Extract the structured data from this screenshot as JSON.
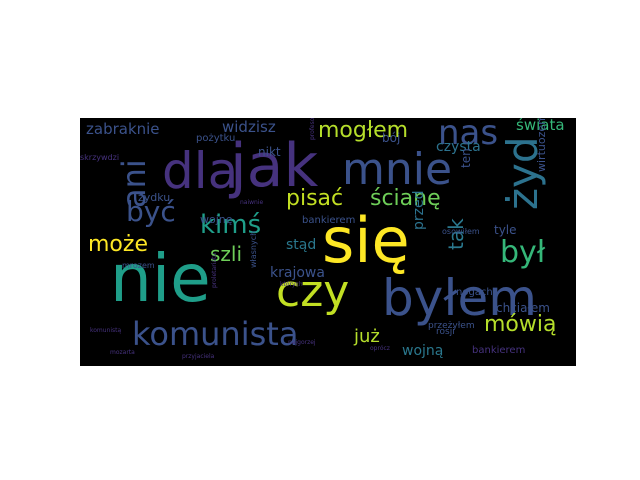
{
  "wordcloud": {
    "background": "#000000",
    "palette": {
      "purple": "#46327e",
      "indigo": "#3b528b",
      "blue": "#365c8d",
      "teal": "#1f9e89",
      "green": "#35b779",
      "lime": "#6ece58",
      "yellow": "#fde725"
    },
    "words": [
      {
        "text": "nie",
        "color": "#1f9e89",
        "weight": 1.0
      },
      {
        "text": "jak",
        "color": "#46327e",
        "weight": 0.92
      },
      {
        "text": "się",
        "color": "#fde725",
        "weight": 0.86
      },
      {
        "text": "byłem",
        "color": "#3b528b",
        "weight": 0.84
      },
      {
        "text": "dla",
        "color": "#46327e",
        "weight": 0.72
      },
      {
        "text": "czy",
        "color": "#c2df23",
        "weight": 0.62
      },
      {
        "text": "mnie",
        "color": "#3b528b",
        "weight": 0.6
      },
      {
        "text": "żyd",
        "color": "#2c728e",
        "weight": 0.58
      },
      {
        "text": "komunista",
        "color": "#3b528b",
        "weight": 0.46
      },
      {
        "text": "nas",
        "color": "#3b528b",
        "weight": 0.44
      },
      {
        "text": "był",
        "color": "#35b779",
        "weight": 0.44
      },
      {
        "text": "ani",
        "color": "#3b528b",
        "weight": 0.44
      },
      {
        "text": "być",
        "color": "#3b528b",
        "weight": 0.38
      },
      {
        "text": "kimś",
        "color": "#1f9e89",
        "weight": 0.36
      },
      {
        "text": "mogłem",
        "color": "#b5de2b",
        "weight": 0.3
      },
      {
        "text": "mówią",
        "color": "#b5de2b",
        "weight": 0.3
      },
      {
        "text": "pisać",
        "color": "#c2df23",
        "weight": 0.3
      },
      {
        "text": "ścianę",
        "color": "#6ece58",
        "weight": 0.3
      },
      {
        "text": "może",
        "color": "#fde725",
        "weight": 0.28
      },
      {
        "text": "szli",
        "color": "#6ece58",
        "weight": 0.26
      },
      {
        "text": "tak",
        "color": "#2a788e",
        "weight": 0.26
      },
      {
        "text": "już",
        "color": "#b5de2b",
        "weight": 0.22
      },
      {
        "text": "zabraknie",
        "color": "#3b528b",
        "weight": 0.2
      },
      {
        "text": "widzisz",
        "color": "#3b528b",
        "weight": 0.2
      },
      {
        "text": "świata",
        "color": "#35b779",
        "weight": 0.2
      },
      {
        "text": "czysta",
        "color": "#2c728e",
        "weight": 0.2
      },
      {
        "text": "przed",
        "color": "#2c728e",
        "weight": 0.2
      },
      {
        "text": "urzędu",
        "color": "#3b528b",
        "weight": 0.2
      },
      {
        "text": "krajowa",
        "color": "#3b528b",
        "weight": 0.2
      },
      {
        "text": "wojną",
        "color": "#2a788e",
        "weight": 0.2
      },
      {
        "text": "stąd",
        "color": "#2a788e",
        "weight": 0.18
      },
      {
        "text": "nikt",
        "color": "#3b528b",
        "weight": 0.18
      },
      {
        "text": "bój",
        "color": "#3b528b",
        "weight": 0.16
      },
      {
        "text": "ten",
        "color": "#3b528b",
        "weight": 0.16
      },
      {
        "text": "tyle",
        "color": "#3b528b",
        "weight": 0.16
      },
      {
        "text": "chciałem",
        "color": "#3b528b",
        "weight": 0.14
      },
      {
        "text": "wirtuozem",
        "color": "#3b528b",
        "weight": 0.12
      },
      {
        "text": "pożytku",
        "color": "#3b528b",
        "weight": 0.12
      },
      {
        "text": "żydku",
        "color": "#3b528b",
        "weight": 0.12
      },
      {
        "text": "wojnę",
        "color": "#3b528b",
        "weight": 0.12
      },
      {
        "text": "bankierem",
        "color": "#3b528b",
        "weight": 0.12
      },
      {
        "text": "bankierem",
        "color": "#46327e",
        "weight": 0.1
      },
      {
        "text": "nogach",
        "color": "#3b528b",
        "weight": 0.1
      },
      {
        "text": "rosji",
        "color": "#3b528b",
        "weight": 0.1
      },
      {
        "text": "przeżyłem",
        "color": "#3b528b",
        "weight": 0.1
      },
      {
        "text": "mrozem",
        "color": "#3b528b",
        "weight": 0.08
      },
      {
        "text": "własnych",
        "color": "#3b528b",
        "weight": 0.08
      },
      {
        "text": "osowiłem",
        "color": "#3b528b",
        "weight": 0.08
      },
      {
        "text": "skrzywdzi",
        "color": "#46327e",
        "weight": 0.08
      },
      {
        "text": "przyjaciela",
        "color": "#46327e",
        "weight": 0.06
      },
      {
        "text": "naiwnie",
        "color": "#46327e",
        "weight": 0.06
      },
      {
        "text": "których",
        "color": "#46327e",
        "weight": 0.06
      },
      {
        "text": "najgorzej",
        "color": "#46327e",
        "weight": 0.06
      },
      {
        "text": "komunistą",
        "color": "#46327e",
        "weight": 0.06
      },
      {
        "text": "mozarta",
        "color": "#46327e",
        "weight": 0.06
      },
      {
        "text": "oprócz",
        "color": "#46327e",
        "weight": 0.06
      },
      {
        "text": "profesorem",
        "color": "#46327e",
        "weight": 0.06
      },
      {
        "text": "proletariatu",
        "color": "#46327e",
        "weight": 0.06
      }
    ]
  }
}
